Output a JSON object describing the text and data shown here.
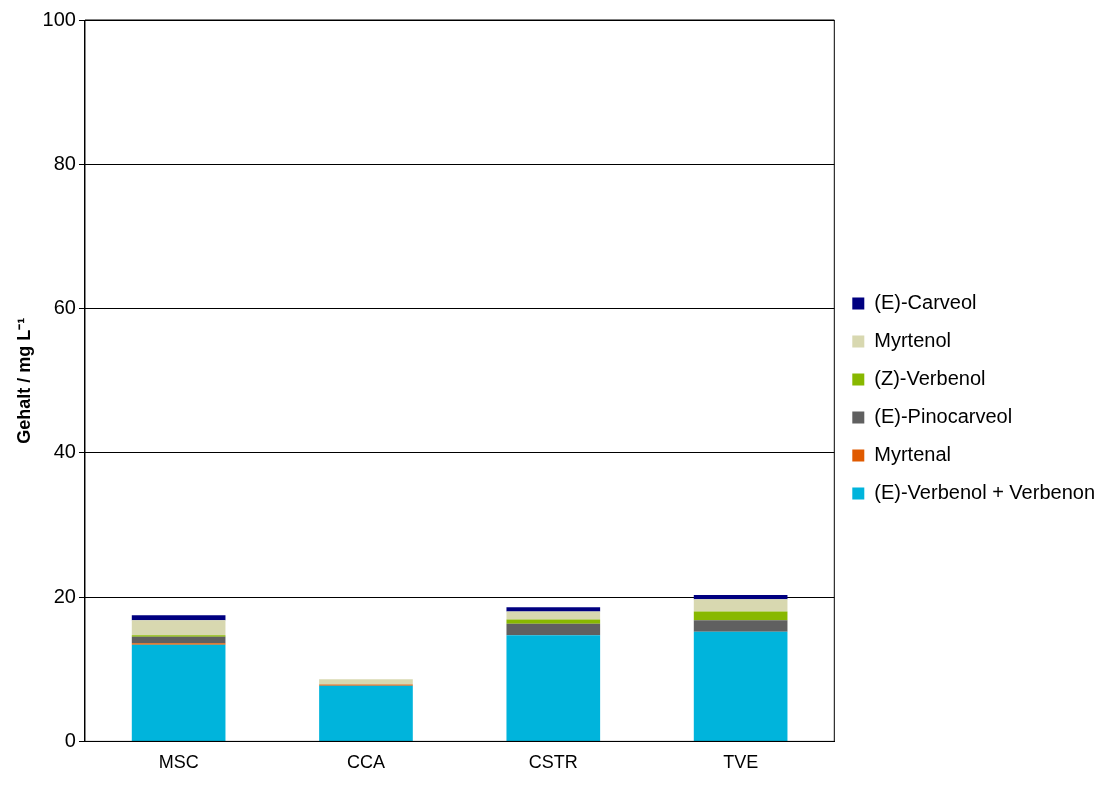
{
  "chart_data": {
    "type": "bar",
    "stacked": true,
    "categories": [
      "MSC",
      "CCA",
      "CSTR",
      "TVE"
    ],
    "ylabel": "Gehalt / mg L⁻¹",
    "ylim": [
      0,
      100
    ],
    "yticks": [
      0,
      20,
      40,
      60,
      80,
      100
    ],
    "grid": "y",
    "legend": "right",
    "series": [
      {
        "name": "(E)-Verbenol + Verbenon",
        "color": "#00b4dc",
        "values": [
          13.4,
          7.7,
          14.7,
          15.2
        ]
      },
      {
        "name": "Myrtenal",
        "color": "#e05a00",
        "values": [
          0.2,
          0.2,
          0,
          0
        ]
      },
      {
        "name": "(E)-Pinocarveol",
        "color": "#606060",
        "values": [
          0.9,
          0,
          1.6,
          1.6
        ]
      },
      {
        "name": "(Z)-Verbenol",
        "color": "#88b800",
        "values": [
          0.2,
          0,
          0.6,
          1.2
        ]
      },
      {
        "name": "Myrtenol",
        "color": "#d8d8b0",
        "values": [
          2.1,
          0.7,
          1.1,
          1.7
        ]
      },
      {
        "name": "(E)-Carveol",
        "color": "#000080",
        "values": [
          0.7,
          0,
          0.6,
          0.6
        ]
      }
    ]
  }
}
